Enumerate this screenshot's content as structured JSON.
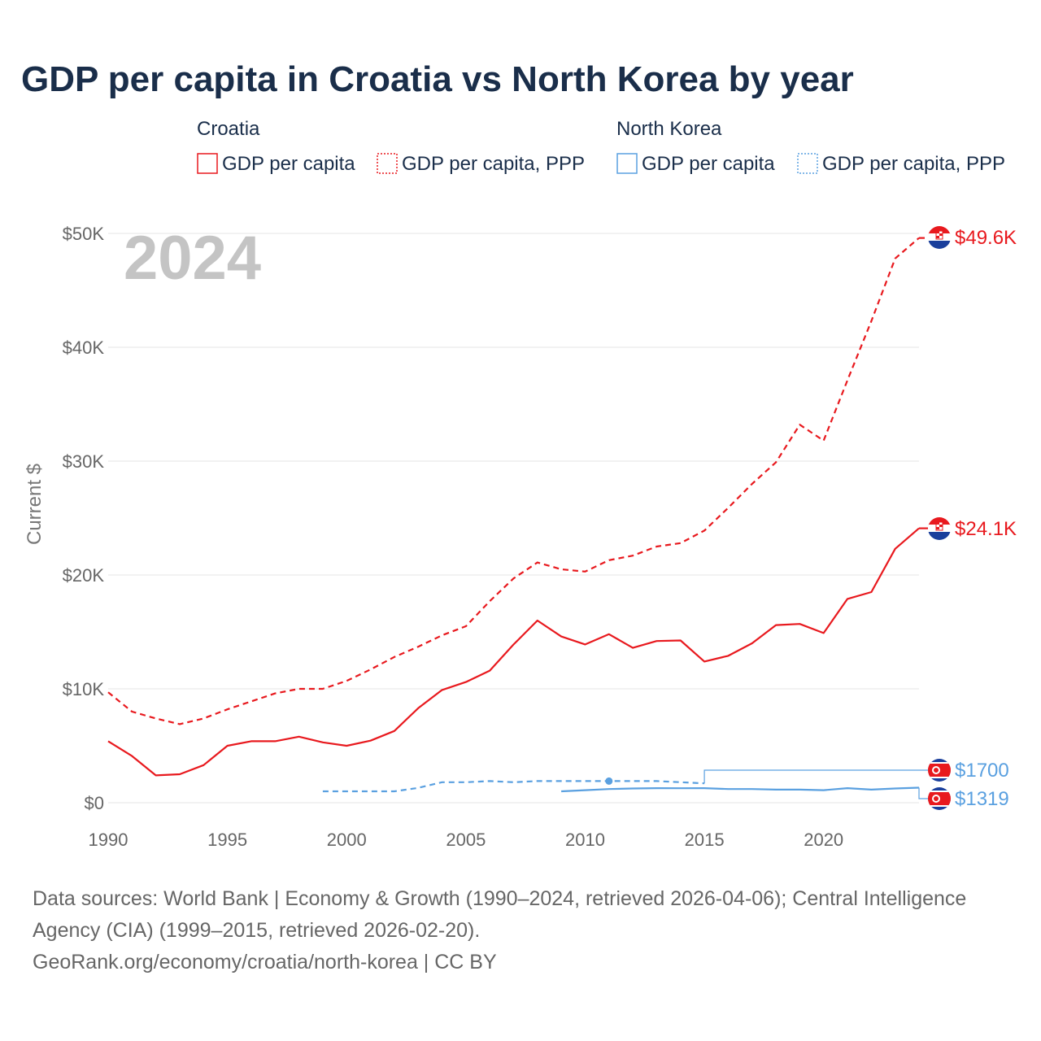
{
  "title": "GDP per capita in Croatia vs North Korea by year",
  "legend": {
    "groups": [
      {
        "name": "Croatia",
        "color": "#e8191e",
        "items": [
          "GDP per capita",
          "GDP per capita, PPP"
        ]
      },
      {
        "name": "North Korea",
        "color": "#5aa0e0",
        "items": [
          "GDP per capita",
          "GDP per capita, PPP"
        ]
      }
    ]
  },
  "year_watermark": "2024",
  "footer": {
    "line1": "Data sources: World Bank | Economy & Growth (1990–2024, retrieved 2026-04-06); Central Intelligence",
    "line2": "Agency (CIA) (1999–2015, retrieved 2026-02-20).",
    "line3": "GeoRank.org/economy/croatia/north-korea | CC BY"
  },
  "chart_data": {
    "type": "line",
    "title": "GDP per capita in Croatia vs North Korea by year",
    "xlabel": "",
    "ylabel": "Current $",
    "xlim": [
      1990,
      2024
    ],
    "ylim": [
      0,
      50000
    ],
    "x_ticks": [
      1990,
      1995,
      2000,
      2005,
      2010,
      2015,
      2020
    ],
    "x_tick_labels": [
      "1990",
      "1995",
      "2000",
      "2005",
      "2010",
      "2015",
      "2020"
    ],
    "y_ticks": [
      0,
      10000,
      20000,
      30000,
      40000,
      50000
    ],
    "y_tick_labels": [
      "$0",
      "$10K",
      "$20K",
      "$30K",
      "$40K",
      "$50K"
    ],
    "series": [
      {
        "name": "Croatia GDP per capita",
        "country": "Croatia",
        "color": "#e8191e",
        "style": "solid",
        "end_label": "$24.1K",
        "x": [
          1990,
          1991,
          1992,
          1993,
          1994,
          1995,
          1996,
          1997,
          1998,
          1999,
          2000,
          2001,
          2002,
          2003,
          2004,
          2005,
          2006,
          2007,
          2008,
          2009,
          2010,
          2011,
          2012,
          2013,
          2014,
          2015,
          2016,
          2017,
          2018,
          2019,
          2020,
          2021,
          2022,
          2023,
          2024
        ],
        "values": [
          5400,
          4100,
          2400,
          2500,
          3300,
          5000,
          5400,
          5400,
          5800,
          5300,
          5000,
          5450,
          6300,
          8300,
          9900,
          10600,
          11600,
          13900,
          16000,
          14600,
          13900,
          14800,
          13600,
          14200,
          14250,
          12400,
          12900,
          14000,
          15600,
          15700,
          14900,
          17900,
          18500,
          22300,
          24100
        ]
      },
      {
        "name": "Croatia GDP per capita, PPP",
        "country": "Croatia",
        "color": "#e8191e",
        "style": "dashed",
        "end_label": "$49.6K",
        "x": [
          1990,
          1991,
          1992,
          1993,
          1994,
          1995,
          1996,
          1997,
          1998,
          1999,
          2000,
          2001,
          2002,
          2003,
          2004,
          2005,
          2006,
          2007,
          2008,
          2009,
          2010,
          2011,
          2012,
          2013,
          2014,
          2015,
          2016,
          2017,
          2018,
          2019,
          2020,
          2021,
          2022,
          2023,
          2024
        ],
        "values": [
          9700,
          8000,
          7400,
          6900,
          7400,
          8200,
          8900,
          9600,
          10000,
          10000,
          10700,
          11700,
          12800,
          13700,
          14700,
          15500,
          17700,
          19700,
          21100,
          20500,
          20300,
          21300,
          21700,
          22500,
          22800,
          23900,
          25900,
          28000,
          29900,
          33200,
          31800,
          37100,
          42300,
          47800,
          49600
        ]
      },
      {
        "name": "North Korea GDP per capita",
        "country": "North Korea",
        "color": "#5aa0e0",
        "style": "solid",
        "end_label": "$1319",
        "x": [
          2009,
          2010,
          2011,
          2012,
          2013,
          2014,
          2015,
          2016,
          2017,
          2018,
          2019,
          2020,
          2021,
          2022,
          2023,
          2024
        ],
        "values": [
          1000,
          1100,
          1200,
          1250,
          1280,
          1270,
          1280,
          1200,
          1200,
          1150,
          1150,
          1100,
          1280,
          1150,
          1250,
          1319
        ]
      },
      {
        "name": "North Korea GDP per capita, PPP",
        "country": "North Korea",
        "color": "#5aa0e0",
        "style": "dashed",
        "end_label": "$1700",
        "x": [
          1999,
          2000,
          2001,
          2002,
          2003,
          2004,
          2005,
          2006,
          2007,
          2008,
          2009,
          2010,
          2011,
          2012,
          2013,
          2014,
          2015
        ],
        "values": [
          1000,
          1000,
          1000,
          1000,
          1300,
          1800,
          1800,
          1900,
          1800,
          1900,
          1900,
          1900,
          1900,
          1900,
          1900,
          1800,
          1700
        ],
        "marker_x": 2011
      }
    ]
  }
}
